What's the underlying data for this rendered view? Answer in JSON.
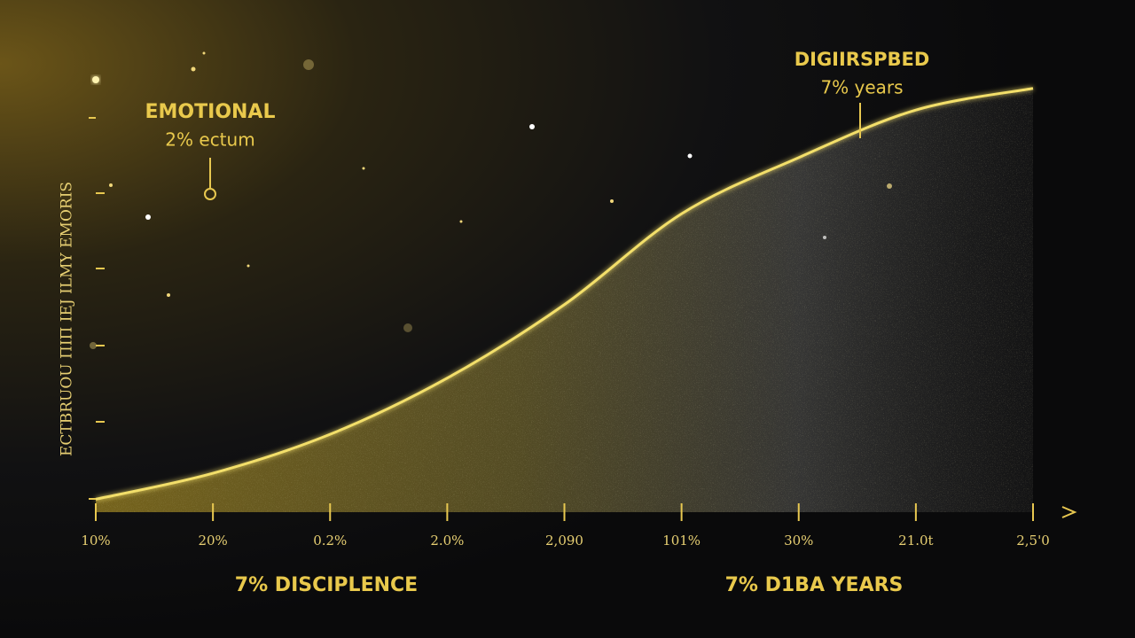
{
  "chart_data": {
    "type": "area",
    "categories": [
      "10%",
      "20%",
      "0.2%",
      "2.0%",
      "2,090",
      "101%",
      "30%",
      "21.0t",
      "2,5'0"
    ],
    "values": [
      3,
      9,
      18,
      31,
      48,
      69,
      82,
      93,
      98
    ],
    "ylim": [
      0,
      100
    ],
    "color": "#f3df6a",
    "y_label": "ECTBRUOU  ΠIΠ IEJ ILMY  EMORIS",
    "x_label_left": "7% DISCIPLENCE",
    "x_label_right": "7% D1BA YEARS",
    "annotations": [
      {
        "title": "EMOTIONAL",
        "text": "2% ectum"
      },
      {
        "title": "DIGIIRSPBED",
        "text": "7% years"
      }
    ]
  }
}
